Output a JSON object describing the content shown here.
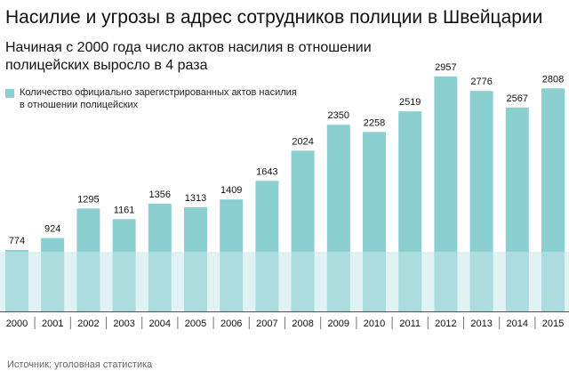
{
  "title": "Насилие и угрозы в адрес сотрудников полиции в Швейцарии",
  "subtitle": "Начиная с 2000 года число актов насилия в отношении полицейских выросло в 4 раза",
  "legend": {
    "label": "Количество официально зарегистрированных актов насилия в отношении полицейских"
  },
  "source": "Источник: уголовная статистика",
  "colors": {
    "bar": "#8ccfd1",
    "band": "#c6e8e9"
  },
  "chart_data": {
    "type": "bar",
    "title": "Насилие и угрозы в адрес сотрудников полиции в Швейцарии",
    "xlabel": "",
    "ylabel": "",
    "categories": [
      "2000",
      "2001",
      "2002",
      "2003",
      "2004",
      "2005",
      "2006",
      "2007",
      "2008",
      "2009",
      "2010",
      "2011",
      "2012",
      "2013",
      "2014",
      "2015"
    ],
    "series": [
      {
        "name": "Количество официально зарегистрированных актов насилия в отношении полицейских",
        "values": [
          774,
          924,
          1295,
          1161,
          1356,
          1313,
          1409,
          1643,
          2024,
          2350,
          2258,
          2519,
          2957,
          2776,
          2567,
          2808
        ]
      }
    ],
    "ylim": [
      0,
      3000
    ],
    "grid": false,
    "legend_position": "top-left"
  }
}
